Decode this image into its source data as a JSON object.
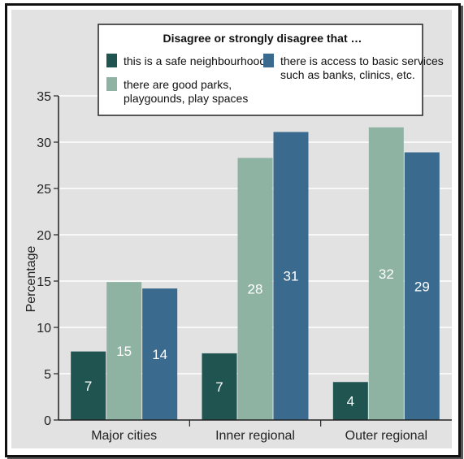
{
  "chart_data": {
    "type": "bar",
    "title": "",
    "ylabel": "Percentage",
    "xlabel": "",
    "ylim": [
      0,
      35
    ],
    "yticks": [
      0,
      5,
      10,
      15,
      20,
      25,
      30,
      35
    ],
    "grid": true,
    "categories": [
      "Major cities",
      "Inner regional",
      "Outer regional"
    ],
    "series": [
      {
        "name": "this is a safe neighbourhood",
        "color": "#1f5450",
        "values": [
          7.4,
          7.2,
          4.1
        ],
        "labels": [
          "7",
          "7",
          "4"
        ]
      },
      {
        "name": "there are good parks, playgounds, play spaces",
        "color": "#8fb3a3",
        "values": [
          14.9,
          28.3,
          31.6
        ],
        "labels": [
          "15",
          "28",
          "32"
        ]
      },
      {
        "name": "there is access to basic services such as banks, clinics, etc.",
        "color": "#3a6b8f",
        "values": [
          14.2,
          31.1,
          28.9
        ],
        "labels": [
          "14",
          "31",
          "29"
        ]
      }
    ],
    "legend": {
      "title": "Disagree or strongly disagree that …",
      "placement": "top-center",
      "entries": [
        [
          "this is a safe neighbourhood"
        ],
        [
          "there are good parks,",
          "playgounds, play spaces"
        ],
        [
          "there is access to basic services",
          "such as banks, clinics, etc."
        ]
      ]
    },
    "plot_background": "#e2e2e2",
    "gridline_color": "#ffffff",
    "axis_color": "#222222"
  }
}
